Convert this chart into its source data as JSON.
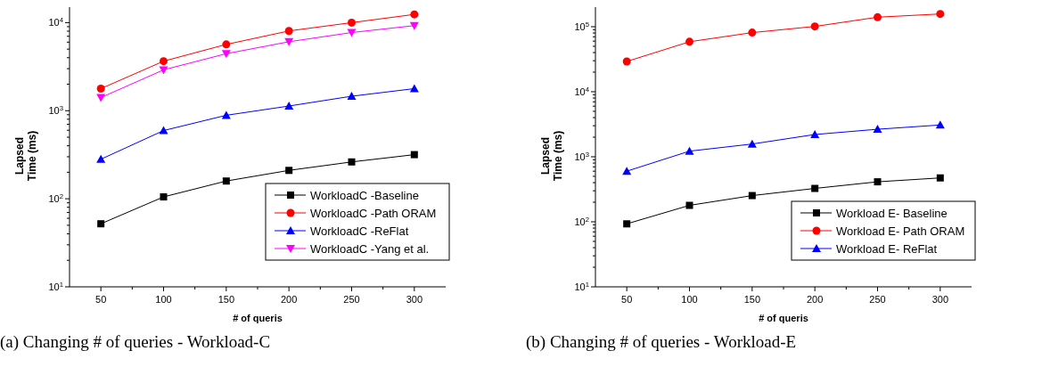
{
  "chart_data": [
    {
      "type": "line",
      "xlabel": "# of queris",
      "ylabel": "Lapsed\nTime (ms)",
      "x": [
        50,
        100,
        150,
        200,
        250,
        300
      ],
      "xlim": [
        25,
        325
      ],
      "xticks": [
        50,
        {
          "value": 75,
          "label": null
        },
        100,
        {
          "value": 125,
          "label": null
        },
        150,
        {
          "value": 175,
          "label": null
        },
        200,
        {
          "value": 225,
          "label": null
        },
        250,
        {
          "value": 275,
          "label": null
        },
        300
      ],
      "log": true,
      "ylim": [
        10,
        15000
      ],
      "yticks": [
        {
          "value": 10,
          "label": "10$^{1}$"
        },
        {
          "value": 100,
          "label": "10$^{2}$"
        },
        {
          "value": 1000,
          "label": "10$^{3}$"
        },
        {
          "value": 10000,
          "label": "10$^{4}$"
        }
      ],
      "grid": false,
      "legend": "bottom right",
      "line_style": "solid",
      "annotations": [
        "(a) Changing # of queries - Workload-C"
      ],
      "series": [
        {
          "name": "WorkloadC -Baseline",
          "color": "#000000",
          "marker": "square",
          "values": [
            52,
            105,
            159,
            210,
            262,
            317
          ]
        },
        {
          "name": "WorkloadC -Path ORAM",
          "color": "#ff0000",
          "marker": "circle",
          "values": [
            1780,
            3650,
            5660,
            8050,
            10000,
            12400
          ]
        },
        {
          "name": "WorkloadC -ReFlat",
          "color": "#0000ff",
          "marker": "triangle",
          "values": [
            281,
            595,
            887,
            1130,
            1460,
            1780
          ]
        },
        {
          "name": "WorkloadC -Yang et al.",
          "color": "#ff00ff",
          "marker": "triangle-down",
          "values": [
            1410,
            2910,
            4440,
            6070,
            7720,
            9250
          ]
        }
      ]
    },
    {
      "type": "line",
      "xlabel": "# of queris",
      "ylabel": "Lapsed\nTime (ms)",
      "x": [
        50,
        100,
        150,
        200,
        250,
        300
      ],
      "xlim": [
        25,
        325
      ],
      "xticks": [
        50,
        {
          "value": 75,
          "label": null
        },
        100,
        {
          "value": 125,
          "label": null
        },
        150,
        {
          "value": 175,
          "label": null
        },
        200,
        {
          "value": 225,
          "label": null
        },
        250,
        {
          "value": 275,
          "label": null
        },
        300
      ],
      "log": true,
      "ylim": [
        10,
        200000
      ],
      "yticks": [
        {
          "value": 10,
          "label": "10$^{1}$"
        },
        {
          "value": 100,
          "label": "10$^{2}$"
        },
        {
          "value": 1000,
          "label": "10$^{3}$"
        },
        {
          "value": 10000,
          "label": "10$^{4}$"
        },
        {
          "value": 100000,
          "label": "10$^{5}$"
        }
      ],
      "grid": false,
      "legend": "bottom right",
      "line_style": "solid",
      "annotations": [
        "(b) Changing # of queries - Workload-E"
      ],
      "series": [
        {
          "name": "Workload E- Baseline",
          "color": "#000000",
          "marker": "square",
          "values": [
            93,
            179,
            253,
            326,
            412,
            473
          ]
        },
        {
          "name": "Workload E- Path ORAM",
          "color": "#ff0000",
          "marker": "circle",
          "values": [
            29200,
            58700,
            81100,
            101000,
            140000,
            157000
          ]
        },
        {
          "name": "Workload E- ReFlat",
          "color": "#0000ff",
          "marker": "triangle",
          "values": [
            600,
            1220,
            1570,
            2200,
            2650,
            3080
          ]
        }
      ]
    }
  ]
}
